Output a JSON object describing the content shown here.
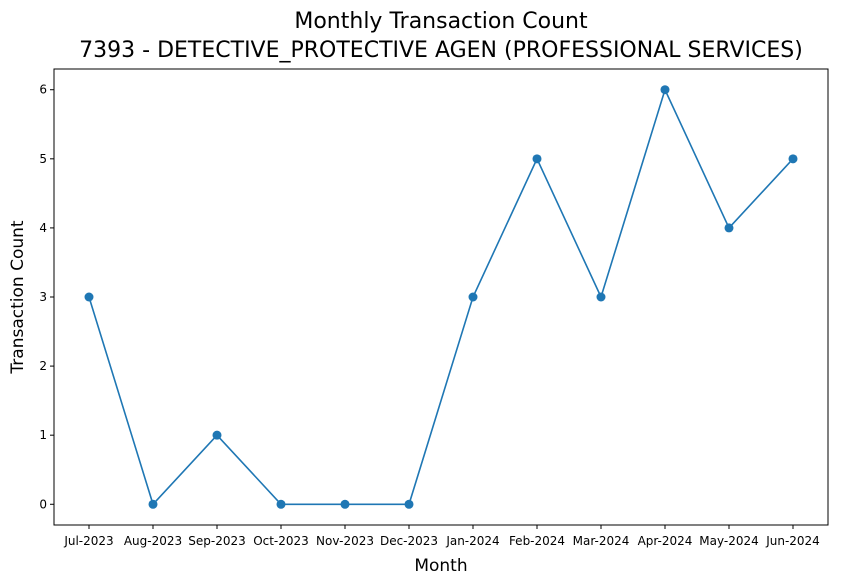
{
  "chart_data": {
    "type": "line",
    "title": "Monthly Transaction Count",
    "subtitle": "7393 - DETECTIVE_PROTECTIVE AGEN (PROFESSIONAL SERVICES)",
    "xlabel": "Month",
    "ylabel": "Transaction Count",
    "categories": [
      "Jul-2023",
      "Aug-2023",
      "Sep-2023",
      "Oct-2023",
      "Nov-2023",
      "Dec-2023",
      "Jan-2024",
      "Feb-2024",
      "Mar-2024",
      "Apr-2024",
      "May-2024",
      "Jun-2024"
    ],
    "series": [
      {
        "values": [
          3,
          0,
          1,
          0,
          0,
          0,
          3,
          5,
          3,
          6,
          4,
          5
        ],
        "color": "#1f77b4",
        "marker": "circle"
      }
    ],
    "yticks": [
      0,
      1,
      2,
      3,
      4,
      5,
      6
    ],
    "ylim": [
      -0.3,
      6.3
    ],
    "grid": false,
    "legend": "none"
  }
}
